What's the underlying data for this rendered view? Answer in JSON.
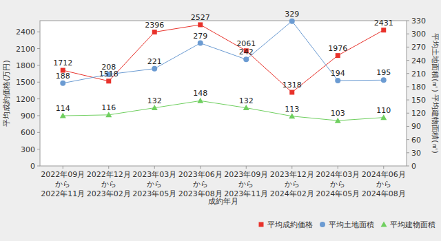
{
  "chart_data": {
    "type": "line",
    "xlabel": "成約年月",
    "ylabel": "平均成約価格(万円)",
    "y2label": "平均土地面積(㎡) 平均建物面積(㎡)",
    "categories": [
      "2022年09月\nから\n2022年11月",
      "2022年12月\nから\n2023年02月",
      "2023年03月\nから\n2023年05月",
      "2023年06月\nから\n2023年08月",
      "2023年09月\nから\n2023年11月",
      "2023年12月\nから\n2024年02月",
      "2024年03月\nから\n2024年05月",
      "2024年06月\nから\n2024年08月"
    ],
    "series": [
      {
        "name": "平均成約価格",
        "color": "#e8322b",
        "marker": "square",
        "values": [
          1712,
          1518,
          2396,
          2527,
          2061,
          1318,
          1976,
          2431
        ]
      },
      {
        "name": "平均土地面積",
        "color": "#6b9bd2",
        "marker": "circle",
        "axis": "y2",
        "values": [
          188,
          208,
          221,
          279,
          242,
          329,
          194,
          195
        ]
      },
      {
        "name": "平均建物面積",
        "color": "#6fcf5f",
        "marker": "triangle",
        "axis": "y2",
        "values": [
          114,
          116,
          132,
          148,
          132,
          113,
          103,
          110
        ]
      }
    ],
    "ylim": [
      0,
      2600
    ],
    "yticks": [
      0,
      300,
      600,
      900,
      1200,
      1500,
      1800,
      2100,
      2400
    ],
    "y2lim": [
      0,
      330
    ],
    "y2ticks": [
      0,
      30,
      60,
      90,
      120,
      150,
      180,
      210,
      240,
      270,
      300,
      330
    ],
    "grid": false,
    "legend": "bottom-right",
    "data_labels": true
  }
}
